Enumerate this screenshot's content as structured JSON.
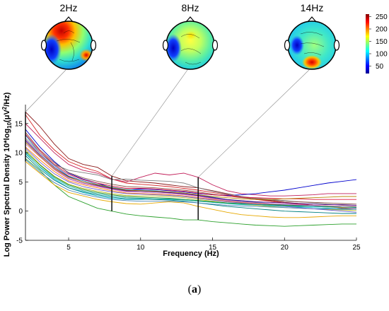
{
  "caption": {
    "open": "(",
    "letter": "a",
    "close": ")"
  },
  "chart_data": {
    "type": "line",
    "xlabel": "Frequency (Hz)",
    "ylabel": "Log Power Spectral Density 10*log",
    "ylabel_sub": "10",
    "ylabel_tail": "(μV",
    "ylabel_sup": "2",
    "ylabel_end": "/Hz)",
    "xlim": [
      2,
      25
    ],
    "ylim": [
      -5,
      18
    ],
    "xticks": [
      5,
      10,
      15,
      20,
      25
    ],
    "yticks": [
      -5,
      0,
      5,
      10,
      15
    ],
    "markers": [
      {
        "freq": 2,
        "label": "2Hz"
      },
      {
        "freq": 8,
        "label": "8Hz"
      },
      {
        "freq": 14,
        "label": "14Hz"
      }
    ],
    "colorbar": {
      "ticks": [
        50,
        100,
        150,
        200,
        250
      ],
      "range": [
        20,
        260
      ],
      "colormap": "jet"
    },
    "x": [
      2,
      3,
      4,
      5,
      6,
      7,
      8,
      9,
      10,
      11,
      12,
      13,
      14,
      15,
      16,
      17,
      18,
      19,
      20,
      21,
      22,
      23,
      24,
      25
    ],
    "series": [
      {
        "color": "#8b1a1a",
        "values": [
          17,
          14.5,
          11.5,
          9,
          8,
          7.5,
          6,
          5.2,
          5,
          4.8,
          4.5,
          4.2,
          4,
          3.5,
          3,
          2.5,
          2,
          1.8,
          1.5,
          1.3,
          1,
          0.8,
          0.5,
          0.3
        ]
      },
      {
        "color": "#d62728",
        "values": [
          16.5,
          13,
          10.5,
          8.5,
          7.5,
          6.8,
          5.5,
          4.8,
          4.6,
          4.4,
          4.2,
          3.9,
          3.6,
          3.2,
          2.8,
          2.4,
          2,
          1.7,
          1.4,
          1.2,
          1,
          0.9,
          0.7,
          0.5
        ]
      },
      {
        "color": "#c21f5a",
        "values": [
          15,
          12.5,
          10,
          8,
          7,
          6.5,
          5.5,
          5,
          5.8,
          6.5,
          6.2,
          6.5,
          5.8,
          4.5,
          3.5,
          3,
          2.8,
          2.6,
          2.6,
          2.7,
          2.8,
          3,
          3,
          3
        ]
      },
      {
        "color": "#2ca02c",
        "values": [
          9,
          7,
          4.5,
          2.5,
          1.5,
          0.5,
          0,
          -0.5,
          -0.8,
          -1,
          -1.2,
          -1.5,
          -1.5,
          -1.8,
          -2,
          -2.2,
          -2.4,
          -2.5,
          -2.6,
          -2.5,
          -2.4,
          -2.3,
          -2.2,
          -2.2
        ]
      },
      {
        "color": "#0000cd",
        "values": [
          14,
          11,
          8.5,
          6.5,
          5.5,
          4.8,
          4,
          3.6,
          3.8,
          3.7,
          3.5,
          3.3,
          3,
          2.8,
          2.7,
          2.8,
          3,
          3.3,
          3.6,
          4,
          4.4,
          4.8,
          5.1,
          5.4
        ]
      },
      {
        "color": "#e6a800",
        "values": [
          8.5,
          6.5,
          4.5,
          3.2,
          2.6,
          2,
          1.6,
          1.3,
          1.2,
          1.4,
          1.6,
          1.4,
          0.8,
          0.3,
          -0.2,
          -0.6,
          -0.8,
          -1,
          -1.1,
          -1.1,
          -1,
          -0.9,
          -0.8,
          -0.8
        ]
      },
      {
        "color": "#17becf",
        "values": [
          10,
          7.5,
          5.5,
          4,
          3.2,
          2.6,
          2.2,
          2,
          2,
          2.1,
          2.1,
          2,
          1.8,
          1.5,
          1.3,
          1.1,
          1,
          0.9,
          0.8,
          0.7,
          0.6,
          0.5,
          0.4,
          0.3
        ]
      },
      {
        "color": "#9467bd",
        "values": [
          12,
          9.5,
          7.2,
          5.6,
          4.8,
          4.3,
          3.8,
          3.4,
          3.4,
          3.3,
          3.1,
          2.9,
          2.6,
          2.2,
          1.9,
          1.6,
          1.4,
          1.2,
          1,
          0.9,
          0.8,
          0.7,
          0.6,
          0.5
        ]
      },
      {
        "color": "#1f77b4",
        "values": [
          13,
          10,
          7.8,
          6,
          5.2,
          4.6,
          4.1,
          3.7,
          3.6,
          3.5,
          3.3,
          3.1,
          2.8,
          2.4,
          2,
          1.7,
          1.5,
          1.3,
          1.1,
          1,
          0.9,
          0.8,
          0.7,
          0.7
        ]
      },
      {
        "color": "#ff7f0e",
        "values": [
          11,
          8.8,
          6.8,
          5.2,
          4.5,
          4,
          3.5,
          3.1,
          3,
          2.9,
          2.8,
          2.6,
          2.3,
          2,
          1.7,
          1.5,
          1.3,
          1.1,
          1,
          0.9,
          0.8,
          0.7,
          0.6,
          0.6
        ]
      },
      {
        "color": "#7f7f7f",
        "values": [
          12.5,
          10,
          8,
          7,
          6.6,
          6.2,
          5.4,
          5.5,
          5.3,
          5.2,
          5.1,
          4.8,
          4,
          3.4,
          2.9,
          2.5,
          2.2,
          2,
          1.8,
          1.6,
          1.4,
          1.2,
          1,
          0.8
        ]
      },
      {
        "color": "#bcbd22",
        "values": [
          10.5,
          8,
          6,
          4.6,
          3.9,
          3.4,
          3,
          2.7,
          2.6,
          2.6,
          2.5,
          2.3,
          2,
          1.7,
          1.4,
          1.2,
          1,
          0.8,
          0.6,
          0.5,
          0.4,
          0.3,
          0.2,
          0.1
        ]
      },
      {
        "color": "#008080",
        "values": [
          9.5,
          7.2,
          5.3,
          4,
          3.3,
          2.8,
          2.4,
          2.1,
          2.1,
          2,
          1.9,
          1.7,
          1.4,
          1.1,
          0.8,
          0.6,
          0.4,
          0.2,
          0,
          -0.1,
          -0.2,
          -0.3,
          -0.4,
          -0.4
        ]
      },
      {
        "color": "#8c564b",
        "values": [
          13.5,
          10.5,
          8.3,
          6.6,
          5.7,
          5.1,
          4.6,
          4.2,
          4.1,
          4,
          3.8,
          3.6,
          3.3,
          2.9,
          2.6,
          2.3,
          2.1,
          1.9,
          1.7,
          1.6,
          1.5,
          1.4,
          1.3,
          1.2
        ]
      },
      {
        "color": "#e377c2",
        "values": [
          11.5,
          9.3,
          7.1,
          5.5,
          4.7,
          4.2,
          3.7,
          3.3,
          3.2,
          3.1,
          3,
          2.8,
          2.5,
          2.1,
          1.8,
          1.6,
          1.4,
          1.3,
          1.2,
          1.1,
          1,
          0.9,
          0.9,
          0.8
        ]
      },
      {
        "color": "#4b0082",
        "values": [
          12.2,
          9.7,
          7.5,
          5.9,
          5,
          4.4,
          3.9,
          3.5,
          3.4,
          3.3,
          3.2,
          3,
          2.7,
          2.3,
          2,
          1.8,
          1.6,
          1.5,
          1.4,
          1.3,
          1.2,
          1.1,
          1.1,
          1
        ]
      },
      {
        "color": "#228b22",
        "values": [
          10.2,
          7.9,
          5.9,
          4.5,
          3.7,
          3.2,
          2.8,
          2.5,
          2.4,
          2.3,
          2.2,
          2,
          1.8,
          1.6,
          1.4,
          1.3,
          1.2,
          1.1,
          1,
          0.9,
          0.8,
          0.8,
          0.7,
          0.7
        ]
      },
      {
        "color": "#dc143c",
        "values": [
          13.2,
          10.3,
          8,
          6.3,
          5.4,
          4.8,
          4.3,
          3.9,
          3.9,
          3.8,
          3.6,
          3.4,
          3.1,
          2.8,
          2.6,
          2.4,
          2.3,
          2.2,
          2.1,
          2.1,
          2,
          2,
          2,
          2
        ]
      },
      {
        "color": "#4682b4",
        "values": [
          8.8,
          6.7,
          4.9,
          3.6,
          2.9,
          2.4,
          2,
          1.8,
          1.7,
          1.7,
          1.7,
          1.6,
          1.4,
          1.2,
          1,
          0.9,
          0.8,
          0.7,
          0.6,
          0.5,
          0.4,
          0.4,
          0.3,
          0.3
        ]
      },
      {
        "color": "#b8860b",
        "values": [
          11.8,
          9.4,
          7.3,
          5.8,
          5,
          4.5,
          4,
          3.6,
          3.5,
          3.4,
          3.3,
          3.1,
          2.8,
          2.5,
          2.3,
          2.1,
          2,
          2,
          2.1,
          2.2,
          2.3,
          2.4,
          2.5,
          2.5
        ]
      },
      {
        "color": "#6a5acd",
        "values": [
          10.8,
          8.4,
          6.4,
          5,
          4.2,
          3.7,
          3.3,
          3,
          2.9,
          2.8,
          2.7,
          2.5,
          2.2,
          1.9,
          1.6,
          1.4,
          1.2,
          1,
          0.8,
          0.6,
          0.4,
          0.2,
          0,
          -0.2
        ]
      },
      {
        "color": "#20b2aa",
        "values": [
          9.8,
          7.6,
          5.7,
          4.3,
          3.5,
          3,
          2.6,
          2.3,
          2.2,
          2.1,
          2,
          1.9,
          1.7,
          1.5,
          1.3,
          1.2,
          1.1,
          1,
          0.9,
          0.8,
          0.8,
          0.7,
          0.7,
          0.6
        ]
      }
    ]
  }
}
